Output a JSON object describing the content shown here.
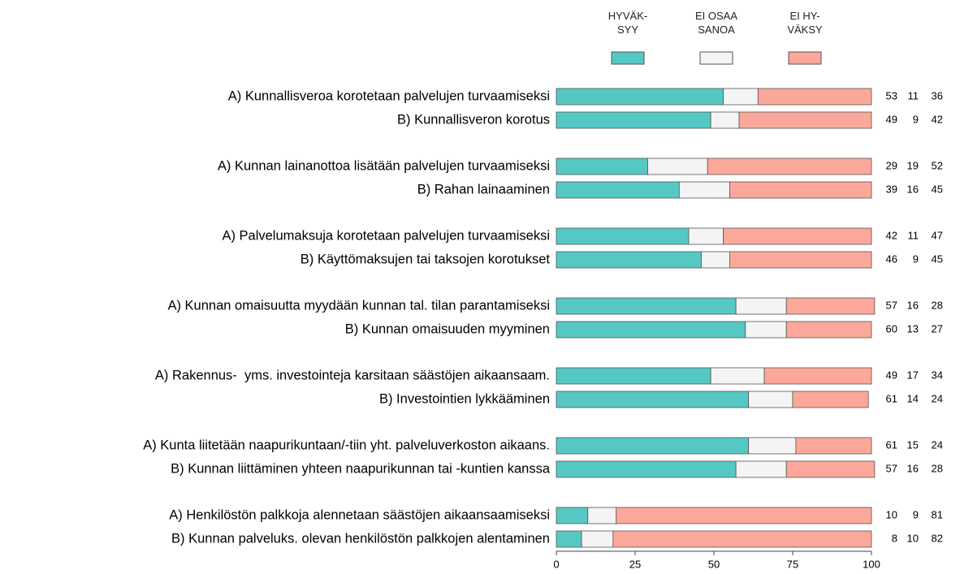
{
  "chart_data": {
    "type": "stacked_bar_horizontal",
    "categories": [
      "A) Kunnallisveroa korotetaan palvelujen turvaamiseksi",
      "B) Kunnallisveron korotus",
      "A) Kunnan lainanottoa lisätään palvelujen turvaamiseksi",
      "B) Rahan lainaaminen",
      "A) Palvelumaksuja korotetaan palvelujen turvaamiseksi",
      "B) Käyttömaksujen tai taksojen korotukset",
      "A) Kunnan omaisuutta myydään kunnan tal. tilan parantamiseksi",
      "B) Kunnan omaisuuden myyminen",
      "A) Rakennus-  yms. investointeja karsitaan säästöjen aikaansaam.",
      "B) Investointien lykkääminen",
      "A) Kunta liitetään naapurikuntaan/-tiin yht. palveluverkoston aikaans.",
      "B) Kunnan liittäminen yhteen naapurikunnan tai -kuntien kanssa",
      "A) Henkilöstön palkkoja alennetaan säästöjen aikaansaamiseksi",
      "B) Kunnan palveluks. olevan henkilöstön palkkojen alentaminen"
    ],
    "series": [
      {
        "name": "HYVÄK-\nSYY",
        "color": "#55c8c4",
        "values": [
          53,
          49,
          29,
          39,
          42,
          46,
          57,
          60,
          49,
          61,
          61,
          57,
          10,
          8
        ]
      },
      {
        "name": "EI OSAA\nSANOA",
        "color": "#f4f4f4",
        "values": [
          11,
          9,
          19,
          16,
          11,
          9,
          16,
          13,
          17,
          14,
          15,
          16,
          9,
          10
        ]
      },
      {
        "name": "EI HY-\nVÄKSY",
        "color": "#fba89a",
        "values": [
          36,
          42,
          52,
          45,
          47,
          45,
          28,
          27,
          34,
          24,
          24,
          28,
          81,
          82
        ]
      }
    ],
    "xlim": [
      0,
      100
    ],
    "xticks": [
      0,
      25,
      50,
      75,
      100
    ]
  }
}
